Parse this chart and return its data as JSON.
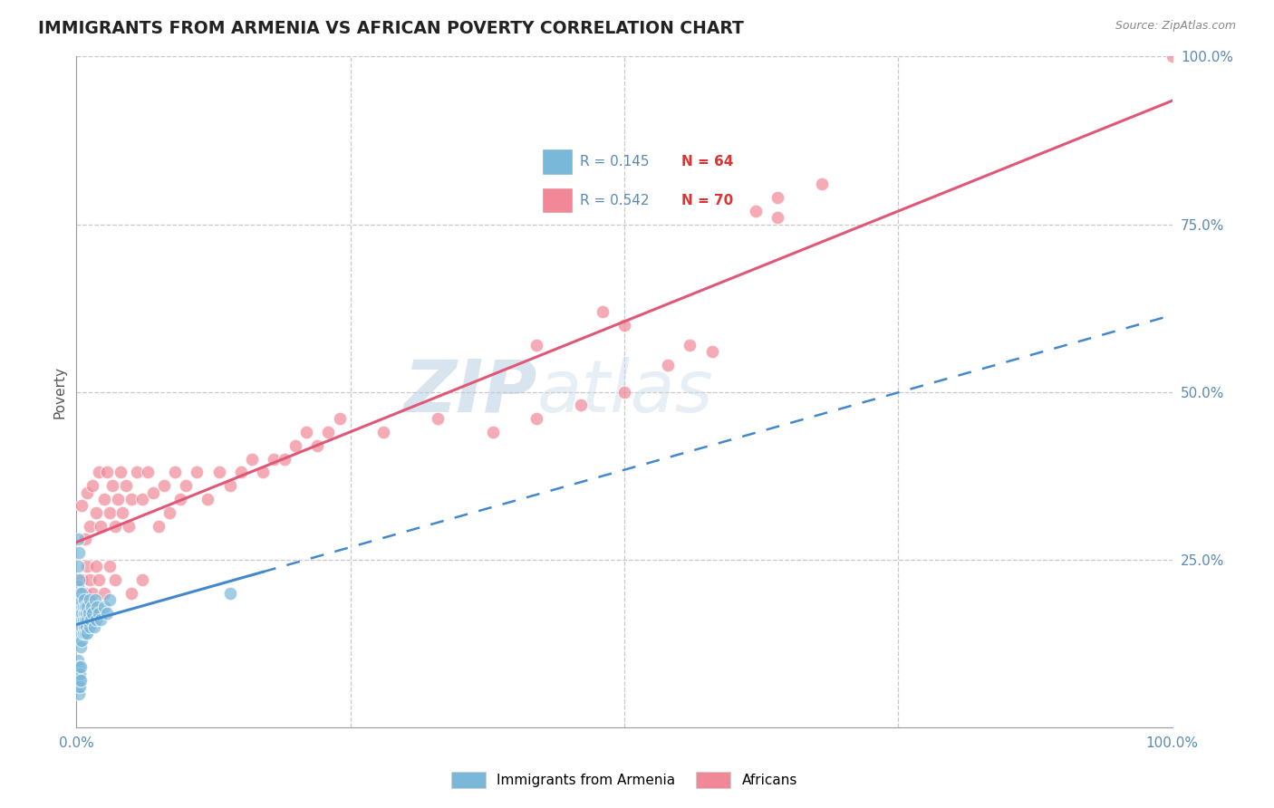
{
  "title": "IMMIGRANTS FROM ARMENIA VS AFRICAN POVERTY CORRELATION CHART",
  "source_text": "Source: ZipAtlas.com",
  "ylabel": "Poverty",
  "watermark_zip": "ZIP",
  "watermark_atlas": "atlas",
  "xlim": [
    0,
    1
  ],
  "ylim": [
    0,
    1
  ],
  "yticks": [
    0.25,
    0.5,
    0.75,
    1.0
  ],
  "ytick_labels": [
    "25.0%",
    "50.0%",
    "75.0%",
    "100.0%"
  ],
  "background_color": "#ffffff",
  "grid_color": "#c8c8c8",
  "axis_color": "#5a8ab5",
  "armenia_scatter_color": "#7ab8d9",
  "africa_scatter_color": "#f08898",
  "armenia_line_color": "#4488cc",
  "africa_line_color": "#e05878",
  "armenia_scatter": [
    [
      0.001,
      0.17
    ],
    [
      0.001,
      0.19
    ],
    [
      0.001,
      0.15
    ],
    [
      0.001,
      0.21
    ],
    [
      0.002,
      0.18
    ],
    [
      0.002,
      0.14
    ],
    [
      0.002,
      0.22
    ],
    [
      0.002,
      0.16
    ],
    [
      0.003,
      0.17
    ],
    [
      0.003,
      0.13
    ],
    [
      0.003,
      0.2
    ],
    [
      0.003,
      0.15
    ],
    [
      0.003,
      0.18
    ],
    [
      0.004,
      0.16
    ],
    [
      0.004,
      0.14
    ],
    [
      0.004,
      0.19
    ],
    [
      0.004,
      0.12
    ],
    [
      0.005,
      0.17
    ],
    [
      0.005,
      0.15
    ],
    [
      0.005,
      0.2
    ],
    [
      0.005,
      0.13
    ],
    [
      0.006,
      0.16
    ],
    [
      0.006,
      0.18
    ],
    [
      0.006,
      0.14
    ],
    [
      0.007,
      0.17
    ],
    [
      0.007,
      0.15
    ],
    [
      0.007,
      0.19
    ],
    [
      0.008,
      0.16
    ],
    [
      0.008,
      0.14
    ],
    [
      0.008,
      0.18
    ],
    [
      0.009,
      0.17
    ],
    [
      0.009,
      0.15
    ],
    [
      0.01,
      0.16
    ],
    [
      0.01,
      0.18
    ],
    [
      0.01,
      0.14
    ],
    [
      0.011,
      0.17
    ],
    [
      0.012,
      0.15
    ],
    [
      0.012,
      0.19
    ],
    [
      0.013,
      0.16
    ],
    [
      0.014,
      0.18
    ],
    [
      0.015,
      0.17
    ],
    [
      0.016,
      0.15
    ],
    [
      0.017,
      0.19
    ],
    [
      0.018,
      0.16
    ],
    [
      0.019,
      0.18
    ],
    [
      0.02,
      0.17
    ],
    [
      0.022,
      0.16
    ],
    [
      0.025,
      0.18
    ],
    [
      0.028,
      0.17
    ],
    [
      0.03,
      0.19
    ],
    [
      0.001,
      0.08
    ],
    [
      0.001,
      0.06
    ],
    [
      0.001,
      0.1
    ],
    [
      0.002,
      0.07
    ],
    [
      0.002,
      0.09
    ],
    [
      0.002,
      0.05
    ],
    [
      0.003,
      0.08
    ],
    [
      0.003,
      0.06
    ],
    [
      0.004,
      0.07
    ],
    [
      0.004,
      0.09
    ],
    [
      0.001,
      0.24
    ],
    [
      0.001,
      0.28
    ],
    [
      0.002,
      0.26
    ],
    [
      0.14,
      0.2
    ]
  ],
  "africa_scatter": [
    [
      0.005,
      0.33
    ],
    [
      0.008,
      0.28
    ],
    [
      0.01,
      0.35
    ],
    [
      0.012,
      0.3
    ],
    [
      0.015,
      0.36
    ],
    [
      0.018,
      0.32
    ],
    [
      0.02,
      0.38
    ],
    [
      0.022,
      0.3
    ],
    [
      0.025,
      0.34
    ],
    [
      0.028,
      0.38
    ],
    [
      0.03,
      0.32
    ],
    [
      0.033,
      0.36
    ],
    [
      0.035,
      0.3
    ],
    [
      0.038,
      0.34
    ],
    [
      0.04,
      0.38
    ],
    [
      0.042,
      0.32
    ],
    [
      0.045,
      0.36
    ],
    [
      0.048,
      0.3
    ],
    [
      0.05,
      0.34
    ],
    [
      0.055,
      0.38
    ],
    [
      0.06,
      0.34
    ],
    [
      0.065,
      0.38
    ],
    [
      0.07,
      0.35
    ],
    [
      0.075,
      0.3
    ],
    [
      0.08,
      0.36
    ],
    [
      0.085,
      0.32
    ],
    [
      0.09,
      0.38
    ],
    [
      0.095,
      0.34
    ],
    [
      0.1,
      0.36
    ],
    [
      0.11,
      0.38
    ],
    [
      0.12,
      0.34
    ],
    [
      0.13,
      0.38
    ],
    [
      0.14,
      0.36
    ],
    [
      0.15,
      0.38
    ],
    [
      0.16,
      0.4
    ],
    [
      0.17,
      0.38
    ],
    [
      0.18,
      0.4
    ],
    [
      0.005,
      0.22
    ],
    [
      0.008,
      0.2
    ],
    [
      0.01,
      0.24
    ],
    [
      0.012,
      0.22
    ],
    [
      0.015,
      0.2
    ],
    [
      0.018,
      0.24
    ],
    [
      0.02,
      0.22
    ],
    [
      0.025,
      0.2
    ],
    [
      0.03,
      0.24
    ],
    [
      0.035,
      0.22
    ],
    [
      0.05,
      0.2
    ],
    [
      0.06,
      0.22
    ],
    [
      0.19,
      0.4
    ],
    [
      0.2,
      0.42
    ],
    [
      0.21,
      0.44
    ],
    [
      0.22,
      0.42
    ],
    [
      0.23,
      0.44
    ],
    [
      0.24,
      0.46
    ],
    [
      0.28,
      0.44
    ],
    [
      0.33,
      0.46
    ],
    [
      0.38,
      0.44
    ],
    [
      0.42,
      0.46
    ],
    [
      0.46,
      0.48
    ],
    [
      0.5,
      0.5
    ],
    [
      0.54,
      0.54
    ],
    [
      0.58,
      0.56
    ],
    [
      0.42,
      0.57
    ],
    [
      0.48,
      0.62
    ],
    [
      0.62,
      0.77
    ],
    [
      0.64,
      0.79
    ],
    [
      0.68,
      0.81
    ],
    [
      0.64,
      0.76
    ],
    [
      0.5,
      0.6
    ],
    [
      0.56,
      0.57
    ],
    [
      1.0,
      1.0
    ]
  ]
}
